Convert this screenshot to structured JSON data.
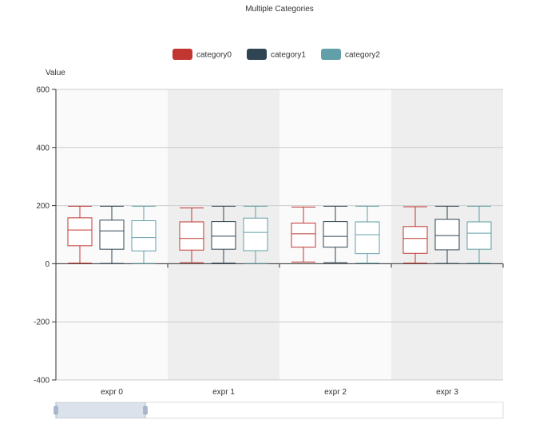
{
  "chart_data": {
    "type": "boxplot",
    "title": "Multiple Categories",
    "ylabel": "Value",
    "ylim": [
      -400,
      600
    ],
    "yticks": [
      -400,
      -200,
      0,
      200,
      400,
      600
    ],
    "categories": [
      "expr 0",
      "expr 1",
      "expr 2",
      "expr 3"
    ],
    "grid": true,
    "legend_position": "top-center",
    "series": [
      {
        "name": "category0",
        "color": "#c23531",
        "boxes": [
          {
            "min": 2,
            "q1": 62,
            "median": 116,
            "q3": 158,
            "max": 198
          },
          {
            "min": 4,
            "q1": 47,
            "median": 87,
            "q3": 144,
            "max": 192
          },
          {
            "min": 6,
            "q1": 57,
            "median": 103,
            "q3": 140,
            "max": 195
          },
          {
            "min": 2,
            "q1": 36,
            "median": 87,
            "q3": 128,
            "max": 196
          }
        ]
      },
      {
        "name": "category1",
        "color": "#2f4554",
        "boxes": [
          {
            "min": 1,
            "q1": 50,
            "median": 113,
            "q3": 150,
            "max": 198
          },
          {
            "min": 2,
            "q1": 50,
            "median": 95,
            "q3": 145,
            "max": 198
          },
          {
            "min": 4,
            "q1": 57,
            "median": 94,
            "q3": 145,
            "max": 198
          },
          {
            "min": 1,
            "q1": 48,
            "median": 97,
            "q3": 153,
            "max": 198
          }
        ]
      },
      {
        "name": "category2",
        "color": "#61a0a8",
        "boxes": [
          {
            "min": 1,
            "q1": 44,
            "median": 90,
            "q3": 148,
            "max": 198
          },
          {
            "min": 1,
            "q1": 45,
            "median": 108,
            "q3": 157,
            "max": 198
          },
          {
            "min": 2,
            "q1": 35,
            "median": 100,
            "q3": 144,
            "max": 198
          },
          {
            "min": 2,
            "q1": 50,
            "median": 105,
            "q3": 144,
            "max": 198
          }
        ]
      }
    ],
    "datazoom": {
      "start_percent": 0,
      "end_percent": 20
    }
  }
}
